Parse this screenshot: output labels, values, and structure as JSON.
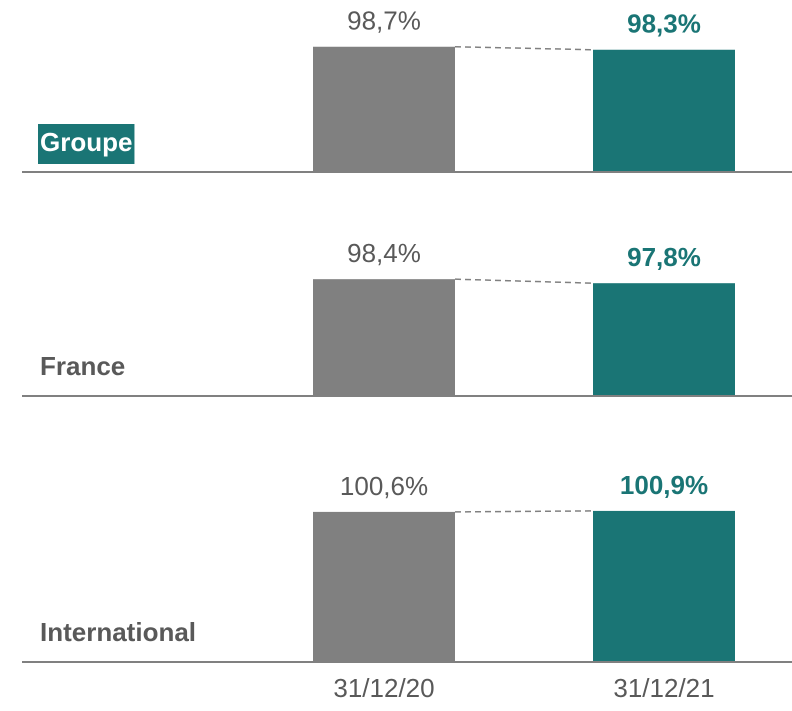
{
  "chart_data": [
    {
      "type": "bar",
      "title": "Groupe",
      "highlight_title": true,
      "categories": [
        "31/12/20",
        "31/12/21"
      ],
      "values": [
        98.7,
        98.3
      ],
      "value_labels": [
        "98,7%",
        "98,3%"
      ],
      "colors": [
        "#808080",
        "#1a7575"
      ],
      "ylim": [
        82,
        101
      ]
    },
    {
      "type": "bar",
      "title": "France",
      "highlight_title": false,
      "categories": [
        "31/12/20",
        "31/12/21"
      ],
      "values": [
        98.4,
        97.8
      ],
      "value_labels": [
        "98,4%",
        "97,8%"
      ],
      "colors": [
        "#808080",
        "#1a7575"
      ],
      "ylim": [
        81,
        102
      ]
    },
    {
      "type": "bar",
      "title": "International",
      "highlight_title": false,
      "categories": [
        "31/12/20",
        "31/12/21"
      ],
      "values": [
        100.6,
        100.9
      ],
      "value_labels": [
        "100,6%",
        "100,9%"
      ],
      "colors": [
        "#808080",
        "#1a7575"
      ],
      "ylim": [
        55,
        103
      ]
    }
  ]
}
